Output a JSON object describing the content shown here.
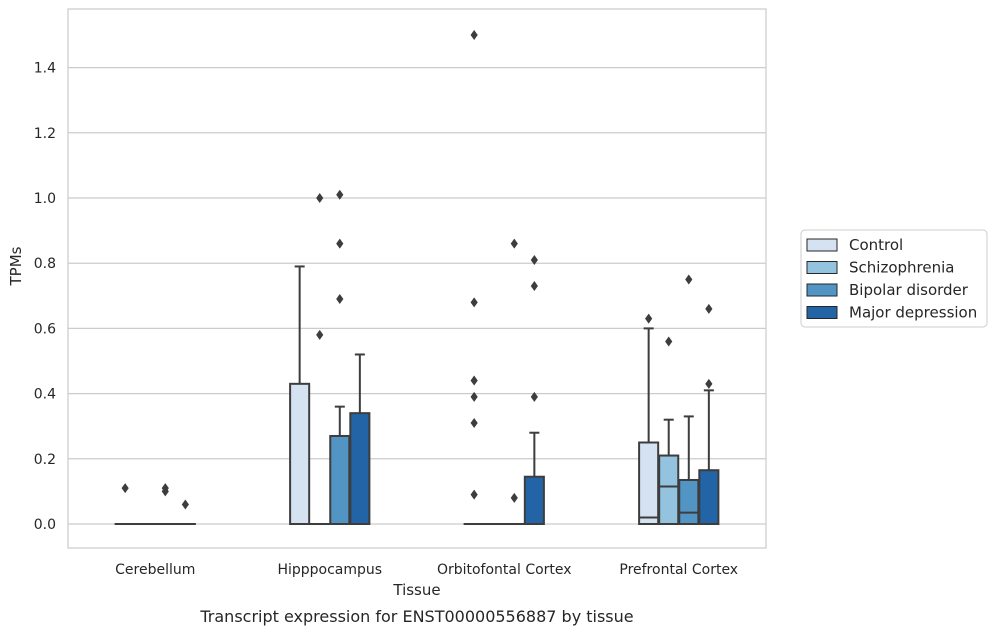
{
  "chart_data": {
    "type": "box",
    "title": "",
    "caption": "Transcript expression for ENST00000556887 by tissue",
    "xlabel": "Tissue",
    "ylabel": "TPMs",
    "ylim": [
      -0.07,
      1.58
    ],
    "yticks": [
      0.0,
      0.2,
      0.4,
      0.6,
      0.8,
      1.0,
      1.2,
      1.4
    ],
    "ytick_labels": [
      "0.0",
      "0.2",
      "0.4",
      "0.6",
      "0.8",
      "1.0",
      "1.2",
      "1.4"
    ],
    "grid": "horizontal",
    "legend_position": "right",
    "categories": [
      "Cerebellum",
      "Hipppocampus",
      "Orbitofontal Cortex",
      "Prefrontal Cortex"
    ],
    "series": [
      {
        "name": "Control",
        "color": "#d4e2f1",
        "boxes": [
          {
            "q1": 0,
            "median": 0,
            "q3": 0,
            "whisker_low": 0,
            "whisker_high": 0,
            "outliers": [
              0.11
            ]
          },
          {
            "q1": 0,
            "median": 0,
            "q3": 0.43,
            "whisker_low": 0,
            "whisker_high": 0.79,
            "outliers": []
          },
          {
            "q1": 0,
            "median": 0,
            "q3": 0,
            "whisker_low": 0,
            "whisker_high": 0,
            "outliers": [
              0.09,
              0.31,
              0.39,
              0.44,
              0.68,
              1.5
            ]
          },
          {
            "q1": 0,
            "median": 0.02,
            "q3": 0.25,
            "whisker_low": 0,
            "whisker_high": 0.6,
            "outliers": [
              0.63
            ]
          }
        ]
      },
      {
        "name": "Schizophrenia",
        "color": "#94c3df",
        "boxes": [
          {
            "q1": 0,
            "median": 0,
            "q3": 0,
            "whisker_low": 0,
            "whisker_high": 0,
            "outliers": []
          },
          {
            "q1": 0,
            "median": 0,
            "q3": 0,
            "whisker_low": 0,
            "whisker_high": 0,
            "outliers": [
              0.58,
              1.0
            ]
          },
          {
            "q1": 0,
            "median": 0,
            "q3": 0,
            "whisker_low": 0,
            "whisker_high": 0,
            "outliers": []
          },
          {
            "q1": 0,
            "median": 0.115,
            "q3": 0.21,
            "whisker_low": 0,
            "whisker_high": 0.32,
            "outliers": [
              0.56
            ]
          }
        ]
      },
      {
        "name": "Bipolar disorder",
        "color": "#5295c5",
        "boxes": [
          {
            "q1": 0,
            "median": 0,
            "q3": 0,
            "whisker_low": 0,
            "whisker_high": 0,
            "outliers": [
              0.1,
              0.11
            ]
          },
          {
            "q1": 0,
            "median": 0,
            "q3": 0.27,
            "whisker_low": 0,
            "whisker_high": 0.36,
            "outliers": [
              0.69,
              0.86,
              1.01
            ]
          },
          {
            "q1": 0,
            "median": 0,
            "q3": 0,
            "whisker_low": 0,
            "whisker_high": 0,
            "outliers": [
              0.08,
              0.86
            ]
          },
          {
            "q1": 0,
            "median": 0.035,
            "q3": 0.135,
            "whisker_low": 0,
            "whisker_high": 0.33,
            "outliers": [
              0.75
            ]
          }
        ]
      },
      {
        "name": "Major depression",
        "color": "#2264a5",
        "boxes": [
          {
            "q1": 0,
            "median": 0,
            "q3": 0,
            "whisker_low": 0,
            "whisker_high": 0,
            "outliers": [
              0.06
            ]
          },
          {
            "q1": 0,
            "median": 0,
            "q3": 0.34,
            "whisker_low": 0,
            "whisker_high": 0.52,
            "outliers": []
          },
          {
            "q1": 0,
            "median": 0,
            "q3": 0.145,
            "whisker_low": 0,
            "whisker_high": 0.28,
            "outliers": [
              0.39,
              0.73,
              0.81
            ]
          },
          {
            "q1": 0,
            "median": 0,
            "q3": 0.165,
            "whisker_low": 0,
            "whisker_high": 0.41,
            "outliers": [
              0.43,
              0.66
            ]
          }
        ]
      }
    ]
  }
}
